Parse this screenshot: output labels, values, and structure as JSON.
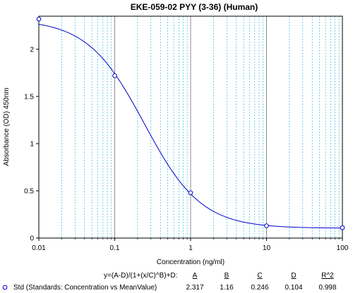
{
  "chart_data": {
    "type": "line",
    "title": "EKE-059-02 PYY (3-36) (Human)",
    "xlabel": "Concentration (ng/ml)",
    "ylabel": "Absorbance (OD) 450nm",
    "xscale": "log",
    "xlim": [
      0.01,
      100
    ],
    "ylim": [
      0,
      2.35
    ],
    "x_ticks": [
      "0.01",
      "0.1",
      "1",
      "10",
      "100"
    ],
    "y_ticks": [
      "0",
      "0.5",
      "1",
      "1.5",
      "2"
    ],
    "grid": "vertical-minor-dashed",
    "series": [
      {
        "name": "Std (Standards: Concentration vs MeanValue)",
        "color": "#0000cc",
        "points": [
          {
            "x": 0.01,
            "y": 2.32
          },
          {
            "x": 0.1,
            "y": 1.72
          },
          {
            "x": 1,
            "y": 0.48
          },
          {
            "x": 10,
            "y": 0.13
          },
          {
            "x": 100,
            "y": 0.11
          }
        ],
        "fit": {
          "A": 2.317,
          "B": 1.16,
          "C": 0.246,
          "D": 0.104
        }
      }
    ],
    "fit_table": {
      "equation": "y=(A-D)/(1+(x/C)^B)+D:",
      "headers": [
        "A",
        "B",
        "C",
        "D",
        "R^2"
      ],
      "values": [
        "2.317",
        "1.16",
        "0.246",
        "0.104",
        "0.998"
      ]
    }
  }
}
